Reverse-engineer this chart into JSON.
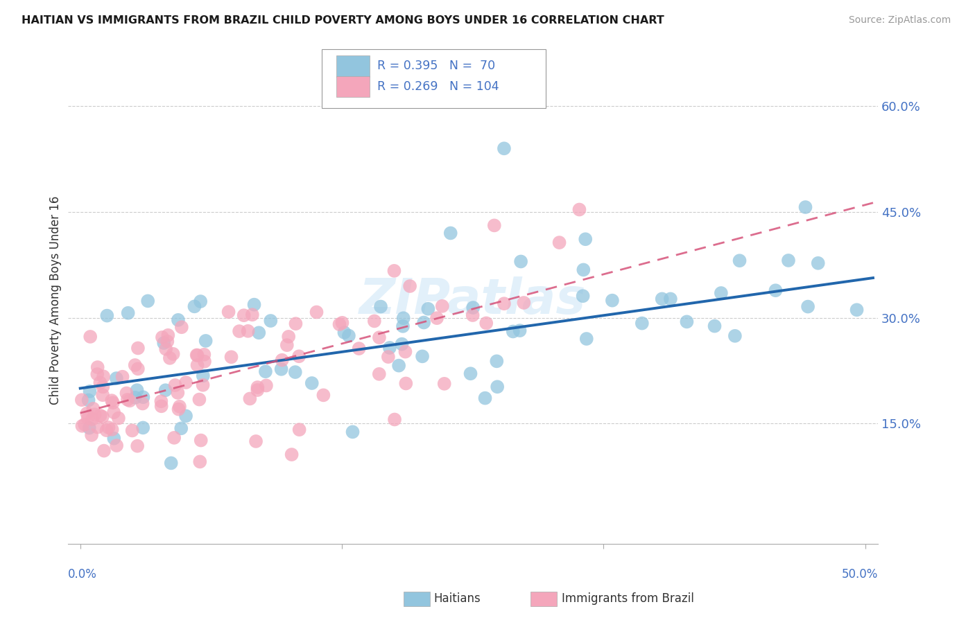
{
  "title": "HAITIAN VS IMMIGRANTS FROM BRAZIL CHILD POVERTY AMONG BOYS UNDER 16 CORRELATION CHART",
  "source": "Source: ZipAtlas.com",
  "ylabel": "Child Poverty Among Boys Under 16",
  "legend_R1": "R = 0.395",
  "legend_N1": "N =  70",
  "legend_R2": "R = 0.269",
  "legend_N2": "N = 104",
  "label1": "Haitians",
  "label2": "Immigrants from Brazil",
  "color1": "#92c5de",
  "color2": "#f4a6bb",
  "line_color1": "#2166ac",
  "line_color2": "#d6537a",
  "title_color": "#1a1a1a",
  "axis_label_color": "#4472c4",
  "watermark": "ZIPatlas",
  "blue_line_start_y": 0.2,
  "blue_line_end_y": 0.355,
  "pink_line_start_y": 0.165,
  "pink_line_end_y": 0.46,
  "x_range": [
    0.0,
    0.5
  ],
  "y_range": [
    0.0,
    0.65
  ],
  "ytick_vals": [
    0.15,
    0.3,
    0.45,
    0.6
  ],
  "ytick_labels": [
    "15.0%",
    "30.0%",
    "45.0%",
    "60.0%"
  ]
}
